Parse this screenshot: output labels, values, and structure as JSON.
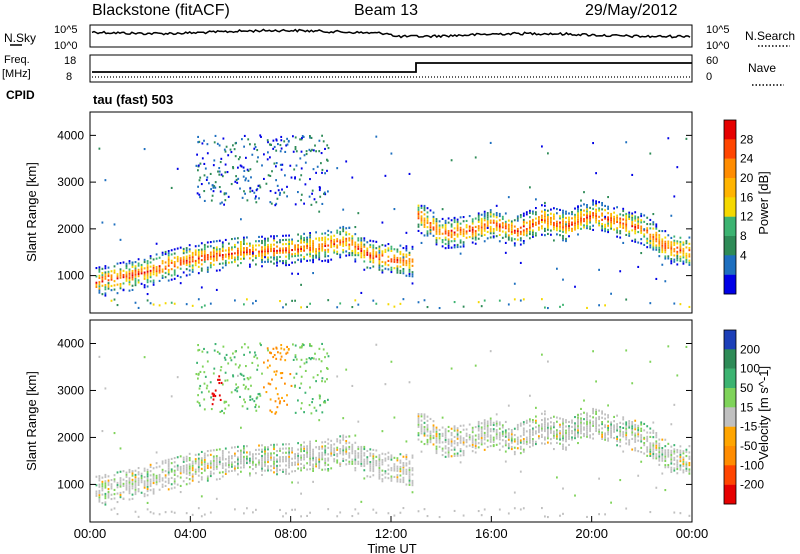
{
  "header": {
    "station": "Blackstone (fitACF)",
    "beam": "Beam 13",
    "date": "29/May/2012"
  },
  "top_panels": {
    "nsky_label": "N.Sky",
    "nsearch_label": "N.Search",
    "noise_ticks": [
      "10^5",
      "10^0"
    ],
    "freq_label_1": "Freq.",
    "freq_label_2": "[MHz]",
    "freq_ticks": [
      "18",
      "8"
    ],
    "nave_label": "Nave",
    "nave_ticks": [
      "60",
      "0"
    ],
    "cpid_label": "CPID",
    "cpid_value": "tau (fast) 503"
  },
  "chart_data": [
    {
      "type": "heatmap",
      "title": "",
      "ylabel": "Slant Range [km]",
      "xlabel": "",
      "x_ticks": [
        "00:00",
        "04:00",
        "08:00",
        "12:00",
        "16:00",
        "20:00",
        "00:00"
      ],
      "y_ticks": [
        "1000",
        "2000",
        "3000",
        "4000"
      ],
      "ylim": [
        200,
        4500
      ],
      "colorbar": {
        "label": "Power [dB]",
        "ticks": [
          "28",
          "24",
          "20",
          "16",
          "12",
          "8",
          "4"
        ],
        "colors": [
          "#e60000",
          "#ff4500",
          "#ff8c00",
          "#ffb400",
          "#f5d800",
          "#3cb371",
          "#2e8b57",
          "#1e6fbf",
          "#0000e6"
        ]
      },
      "bands": [
        {
          "x": [
            0.2,
            2,
            4,
            6,
            8,
            9.5,
            10.2,
            11,
            12,
            12.9
          ],
          "y": [
            850,
            1050,
            1350,
            1500,
            1550,
            1650,
            1750,
            1450,
            1350,
            1300
          ],
          "strength": "high"
        },
        {
          "x": [
            13,
            14,
            15,
            16,
            17,
            18,
            19,
            20,
            21,
            22,
            23,
            23.9
          ],
          "y": [
            2300,
            1900,
            1950,
            2100,
            1950,
            2200,
            2050,
            2300,
            2150,
            2000,
            1600,
            1500
          ],
          "strength": "high"
        }
      ]
    },
    {
      "type": "heatmap",
      "title": "",
      "ylabel": "Slant Range [km]",
      "xlabel": "Time UT",
      "x_ticks": [
        "00:00",
        "04:00",
        "08:00",
        "12:00",
        "16:00",
        "20:00",
        "00:00"
      ],
      "y_ticks": [
        "1000",
        "2000",
        "3000",
        "4000"
      ],
      "ylim": [
        200,
        4500
      ],
      "colorbar": {
        "label": "Velocity [m s^-1]",
        "ticks": [
          "200",
          "100",
          "50",
          "15",
          "-15",
          "-50",
          "-100",
          "-200"
        ],
        "colors": [
          "#1c3fb8",
          "#2e8b57",
          "#3cb371",
          "#7fd35a",
          "#c0c0c0",
          "#ffa500",
          "#ff8c00",
          "#ff4500",
          "#e60000"
        ]
      }
    }
  ]
}
